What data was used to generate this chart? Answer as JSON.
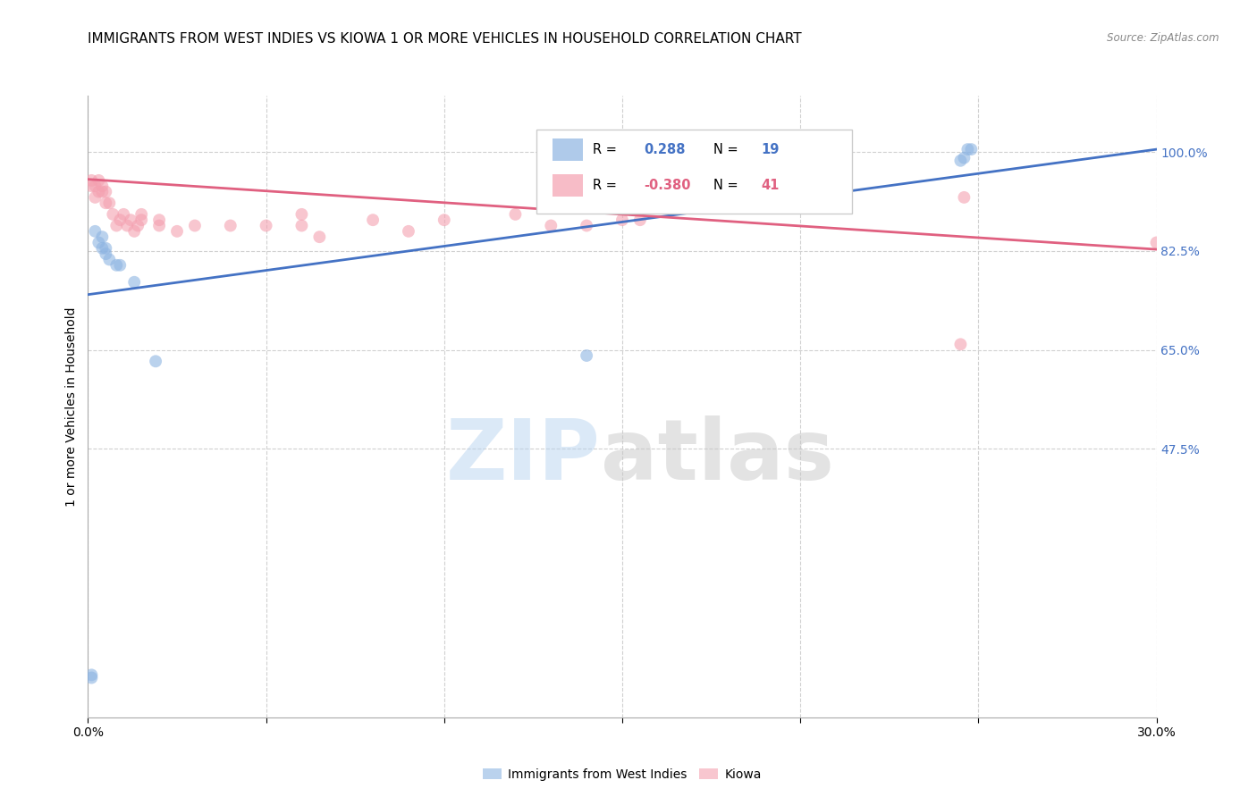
{
  "title": "IMMIGRANTS FROM WEST INDIES VS KIOWA 1 OR MORE VEHICLES IN HOUSEHOLD CORRELATION CHART",
  "source": "Source: ZipAtlas.com",
  "ylabel": "1 or more Vehicles in Household",
  "xlim": [
    0.0,
    0.3
  ],
  "ylim": [
    0.0,
    1.1
  ],
  "xticks": [
    0.0,
    0.05,
    0.1,
    0.15,
    0.2,
    0.25,
    0.3
  ],
  "ytick_labels_right": [
    "100.0%",
    "82.5%",
    "65.0%",
    "47.5%"
  ],
  "ytick_values_right": [
    1.0,
    0.825,
    0.65,
    0.475
  ],
  "legend_blue_R": "0.288",
  "legend_blue_N": "19",
  "legend_pink_R": "-0.380",
  "legend_pink_N": "41",
  "legend_blue_label": "Immigrants from West Indies",
  "legend_pink_label": "Kiowa",
  "blue_color": "#8DB4E2",
  "pink_color": "#F4A0B0",
  "blue_line_color": "#4472C4",
  "pink_line_color": "#E06080",
  "blue_points_x": [
    0.001,
    0.001,
    0.002,
    0.003,
    0.004,
    0.004,
    0.005,
    0.005,
    0.006,
    0.008,
    0.009,
    0.013,
    0.019,
    0.14,
    0.145,
    0.245,
    0.246,
    0.247,
    0.248
  ],
  "blue_points_y": [
    0.07,
    0.075,
    0.86,
    0.84,
    0.83,
    0.85,
    0.82,
    0.83,
    0.81,
    0.8,
    0.8,
    0.77,
    0.63,
    0.64,
    1.0,
    0.985,
    0.99,
    1.005,
    1.005
  ],
  "pink_points_x": [
    0.001,
    0.001,
    0.002,
    0.002,
    0.003,
    0.003,
    0.004,
    0.004,
    0.005,
    0.005,
    0.006,
    0.007,
    0.008,
    0.009,
    0.01,
    0.011,
    0.012,
    0.013,
    0.014,
    0.015,
    0.015,
    0.02,
    0.02,
    0.025,
    0.03,
    0.04,
    0.05,
    0.06,
    0.06,
    0.065,
    0.08,
    0.09,
    0.1,
    0.12,
    0.13,
    0.14,
    0.15,
    0.155,
    0.245,
    0.246,
    0.3
  ],
  "pink_points_y": [
    0.94,
    0.95,
    0.92,
    0.94,
    0.93,
    0.95,
    0.93,
    0.94,
    0.91,
    0.93,
    0.91,
    0.89,
    0.87,
    0.88,
    0.89,
    0.87,
    0.88,
    0.86,
    0.87,
    0.88,
    0.89,
    0.87,
    0.88,
    0.86,
    0.87,
    0.87,
    0.87,
    0.89,
    0.87,
    0.85,
    0.88,
    0.86,
    0.88,
    0.89,
    0.87,
    0.87,
    0.88,
    0.88,
    0.66,
    0.92,
    0.84
  ],
  "blue_trendline_x": [
    0.0,
    0.3
  ],
  "blue_trendline_y": [
    0.748,
    1.005
  ],
  "pink_trendline_x": [
    0.0,
    0.3
  ],
  "pink_trendline_y": [
    0.952,
    0.828
  ],
  "grid_color": "#D0D0D0",
  "background_color": "#FFFFFF",
  "title_fontsize": 11,
  "axis_label_fontsize": 10,
  "tick_fontsize": 10,
  "marker_size": 100
}
